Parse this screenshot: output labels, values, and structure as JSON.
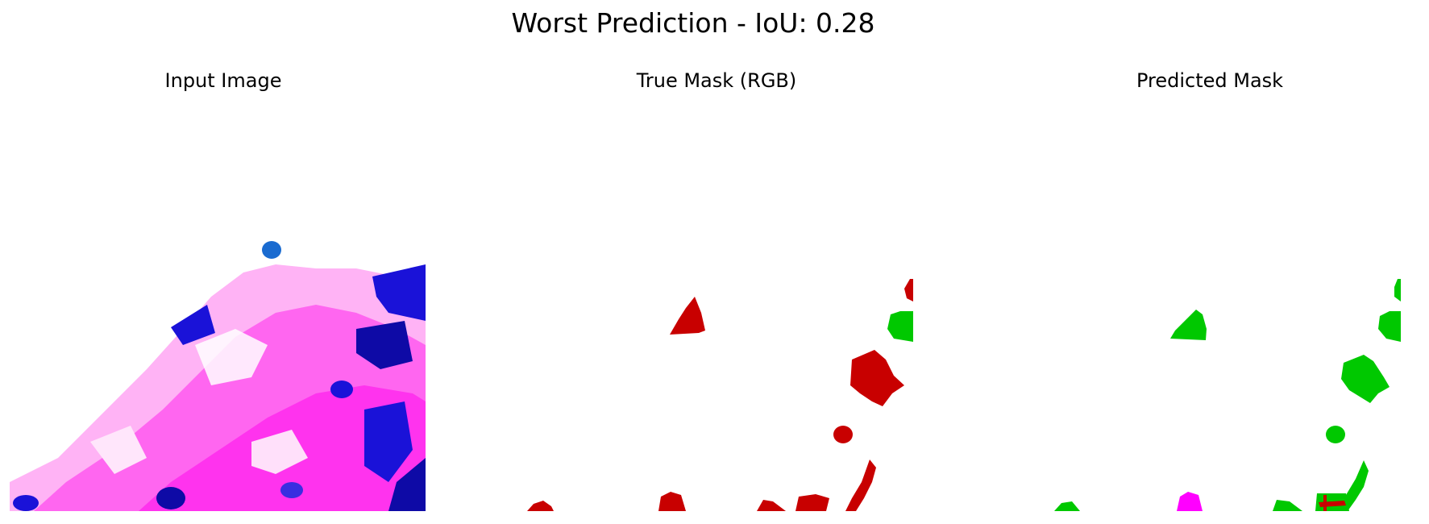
{
  "figure": {
    "title": "Worst Prediction - IoU: 0.28"
  },
  "panels": [
    {
      "title": "Input Image"
    },
    {
      "title": "True Mask (RGB)"
    },
    {
      "title": "Predicted Mask"
    }
  ],
  "colors": {
    "background": "#ffffff",
    "stain_pink": "#ff33ee",
    "stain_light": "#ff99f5",
    "stain_blue": "#1a12d8",
    "stain_dark_blue": "#0e0aa6",
    "mask_red": "#c80000",
    "mask_green": "#00c800",
    "mask_magenta": "#ff00ff"
  }
}
